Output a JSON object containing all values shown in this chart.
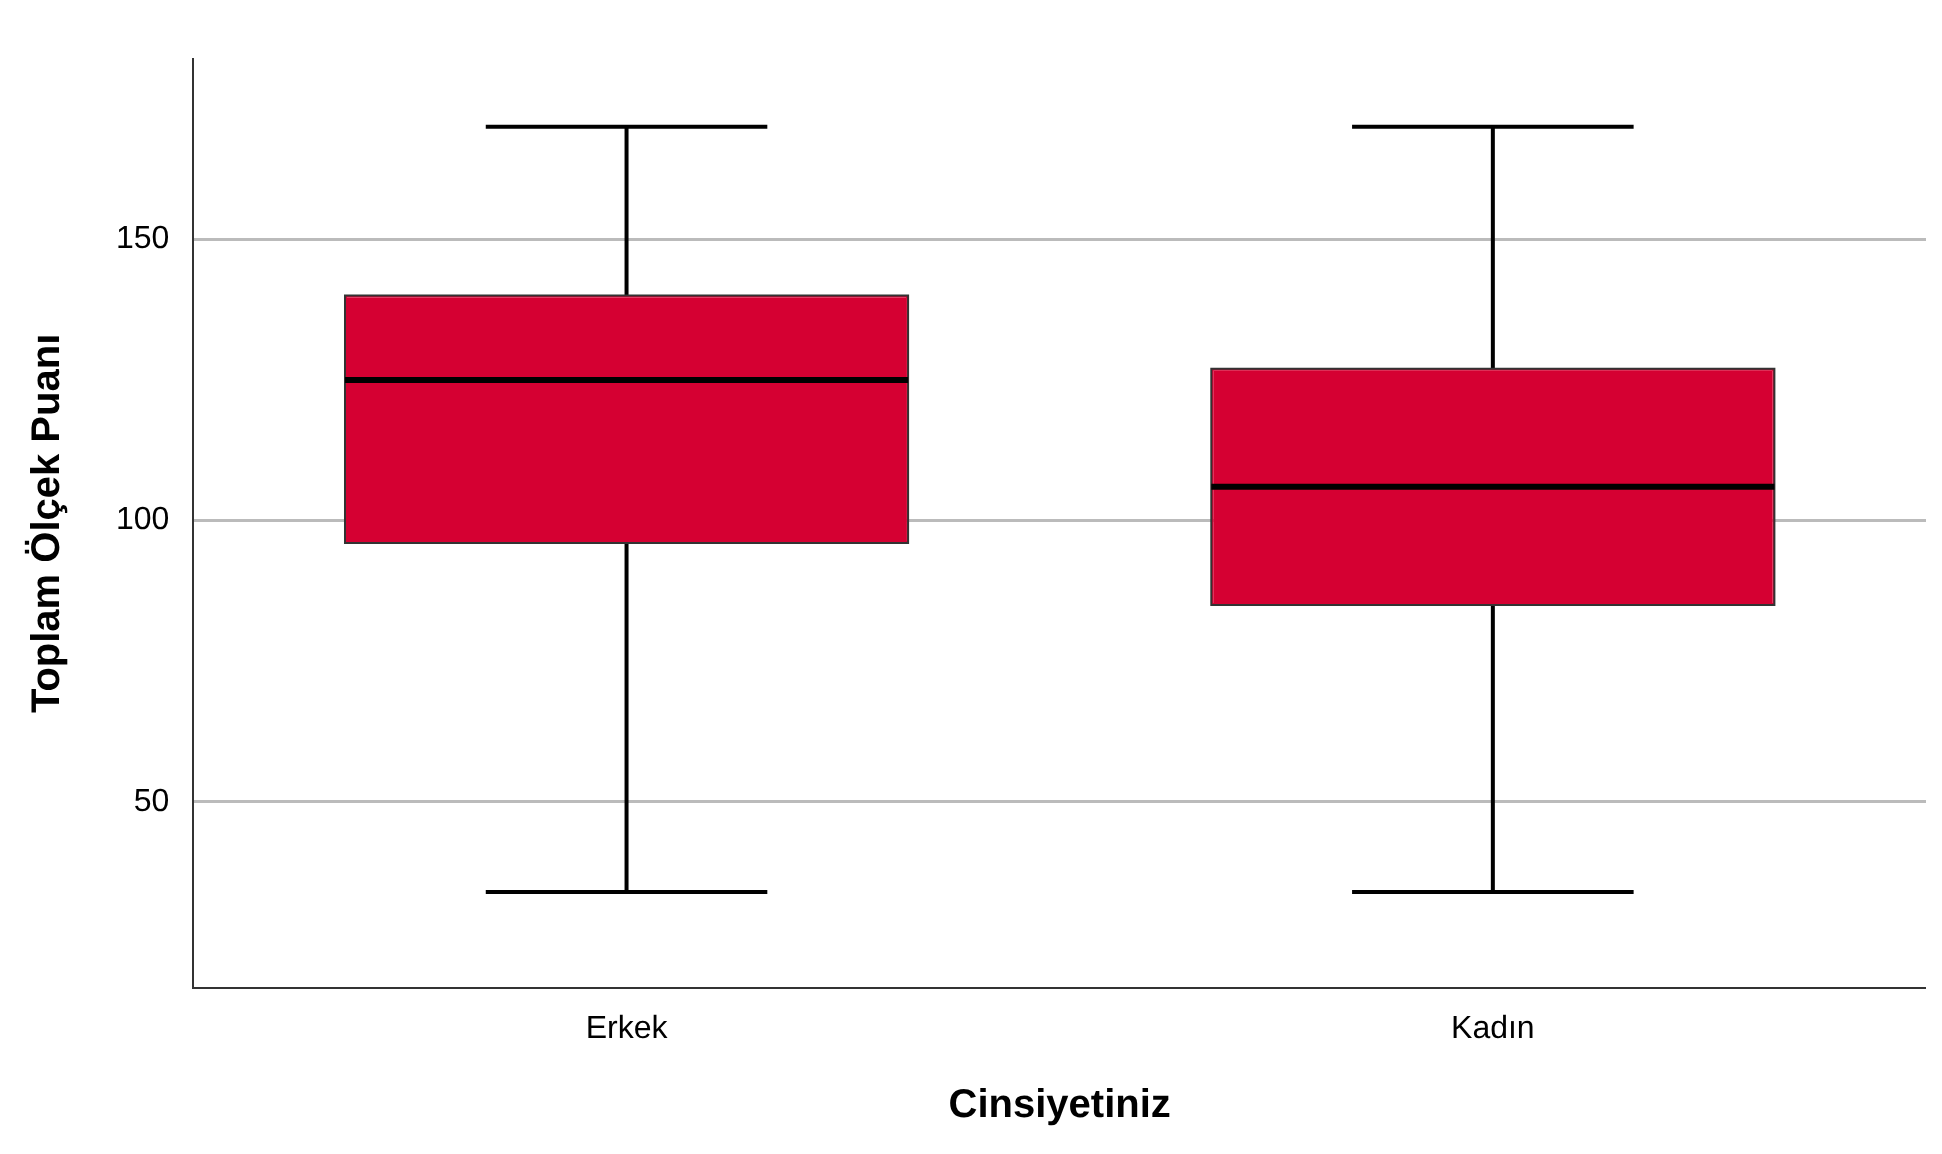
{
  "chart_data": {
    "type": "box",
    "xlabel": "Cinsiyetiniz",
    "ylabel": "Toplam Ölçek Puanı",
    "categories": [
      "Erkek",
      "Kadın"
    ],
    "color": "#d50032",
    "boxes": [
      {
        "low": 34,
        "q1": 96,
        "median": 125,
        "q3": 140,
        "high": 170
      },
      {
        "low": 34,
        "q1": 85,
        "median": 106,
        "q3": 127,
        "high": 170
      }
    ],
    "ylim": [
      17,
      182
    ],
    "yticks": [
      50,
      100,
      150
    ],
    "grid": "y",
    "legend": false
  }
}
